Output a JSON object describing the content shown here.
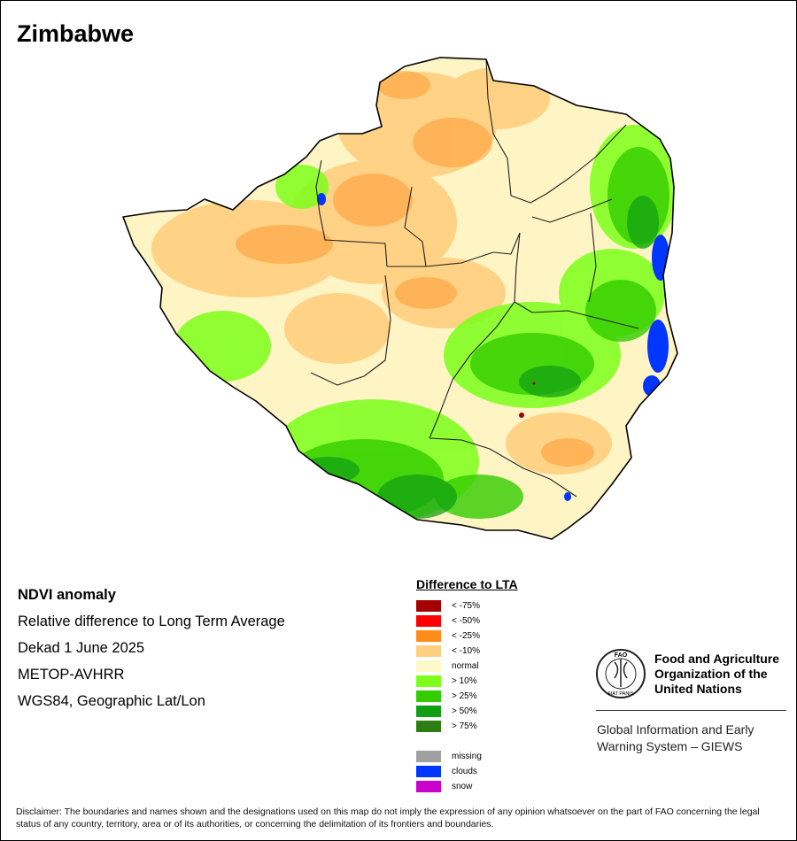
{
  "map": {
    "country": "Zimbabwe",
    "product": "NDVI anomaly",
    "description": "Relative difference to Long Term Average",
    "period": "Dekad 1 June 2025",
    "sensor": "METOP-AVHRR",
    "projection": "WGS84, Geographic Lat/Lon"
  },
  "legend": {
    "title": "Difference to LTA",
    "classes": [
      {
        "label": "< -75%",
        "color": "#a40000"
      },
      {
        "label": "< -50%",
        "color": "#ff0000"
      },
      {
        "label": "< -25%",
        "color": "#ff8c1a"
      },
      {
        "label": "< -10%",
        "color": "#ffcf80"
      },
      {
        "label": "normal",
        "color": "#fff8c8"
      },
      {
        "label": "> 10%",
        "color": "#7cff1a"
      },
      {
        "label": "> 25%",
        "color": "#33cc00"
      },
      {
        "label": "> 50%",
        "color": "#12a012"
      },
      {
        "label": "> 75%",
        "color": "#2e7d12"
      }
    ],
    "other": [
      {
        "label": "missing",
        "color": "#a0a0a0"
      },
      {
        "label": "clouds",
        "color": "#0036ff"
      },
      {
        "label": "snow",
        "color": "#cc00cc"
      }
    ]
  },
  "organization": {
    "logo_text_top": "FAO",
    "logo_text_bottom": "FIAT PANIS",
    "name_line1": "Food and Agriculture",
    "name_line2": "Organization of the",
    "name_line3": "United Nations",
    "unit_line1": "Global Information and Early",
    "unit_line2": "Warning System – GIEWS"
  },
  "disclaimer": "Disclaimer: The boundaries and names shown and the designations used on this map do not imply the expression of any opinion whatsoever on the part of FAO concerning the legal status of any country, territory, area or of its authorities, or concerning the delimitation of its frontiers and boundaries."
}
